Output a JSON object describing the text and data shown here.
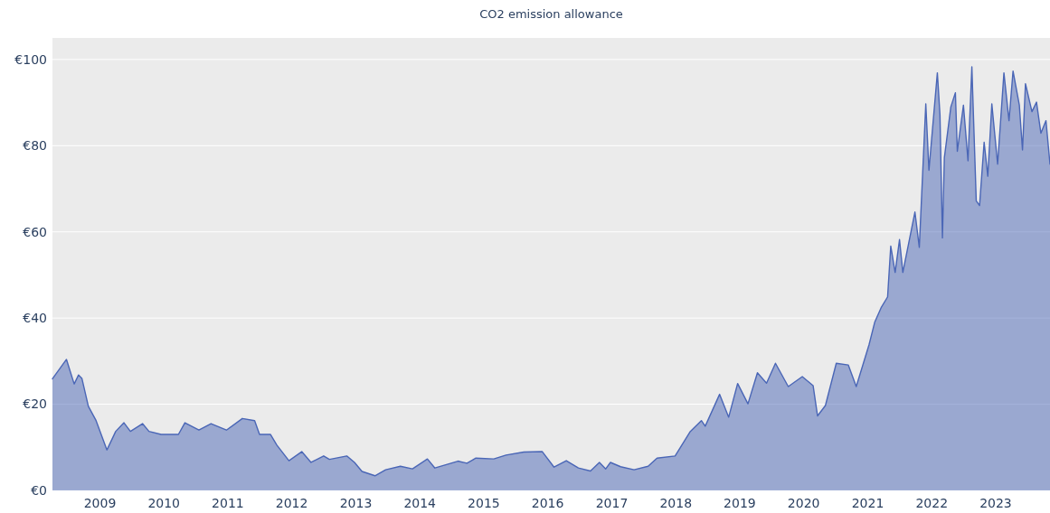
{
  "chart_data": {
    "type": "area",
    "title": "CO2 emission allowance",
    "xlim": [
      "2008-04-05",
      "2023-11-07"
    ],
    "xticks": [
      {
        "value": "2009",
        "label": "2009"
      },
      {
        "value": "2010",
        "label": "2010"
      },
      {
        "value": "2011",
        "label": "2011"
      },
      {
        "value": "2012",
        "label": "2012"
      },
      {
        "value": "2013",
        "label": "2013"
      },
      {
        "value": "2014",
        "label": "2014"
      },
      {
        "value": "2015",
        "label": "2015"
      },
      {
        "value": "2016",
        "label": "2016"
      },
      {
        "value": "2017",
        "label": "2017"
      },
      {
        "value": "2018",
        "label": "2018"
      },
      {
        "value": "2019",
        "label": "2019"
      },
      {
        "value": "2020",
        "label": "2020"
      },
      {
        "value": "2021",
        "label": "2021"
      },
      {
        "value": "2022",
        "label": "2022"
      },
      {
        "value": "2023",
        "label": "2023"
      }
    ],
    "ylim": [
      0,
      105
    ],
    "yticks": [
      {
        "value": 0,
        "label": "€0"
      },
      {
        "value": 20,
        "label": "€20"
      },
      {
        "value": 40,
        "label": "€40"
      },
      {
        "value": 60,
        "label": "€60"
      },
      {
        "value": 80,
        "label": "€80"
      },
      {
        "value": 100,
        "label": "€100"
      }
    ],
    "grid": "y",
    "series": [
      {
        "color": "#4a66b6",
        "x": [
          "2008-04-05",
          "2008-06-24",
          "2008-08-07",
          "2008-09-01",
          "2008-09-20",
          "2008-10-27",
          "2008-12-10",
          "2009-02-10",
          "2009-04-01",
          "2009-05-18",
          "2009-06-24",
          "2009-09-01",
          "2009-10-08",
          "2009-12-16",
          "2010-03-25",
          "2010-05-01",
          "2010-07-20",
          "2010-09-27",
          "2010-12-24",
          "2011-03-25",
          "2011-06-03",
          "2011-07-01",
          "2011-09-01",
          "2011-10-08",
          "2011-12-16",
          "2012-02-27",
          "2012-04-20",
          "2012-07-01",
          "2012-08-03",
          "2012-11-10",
          "2012-12-24",
          "2013-02-05",
          "2013-04-20",
          "2013-06-20",
          "2013-09-12",
          "2013-11-20",
          "2014-02-13",
          "2014-03-28",
          "2014-08-07",
          "2014-09-27",
          "2014-11-17",
          "2015-02-27",
          "2015-05-08",
          "2015-08-18",
          "2015-12-01",
          "2016-02-06",
          "2016-04-16",
          "2016-06-24",
          "2016-09-01",
          "2016-10-22",
          "2016-11-27",
          "2016-12-24",
          "2017-02-20",
          "2017-05-08",
          "2017-07-27",
          "2017-09-16",
          "2017-12-28",
          "2018-03-25",
          "2018-05-27",
          "2018-06-18",
          "2018-09-08",
          "2018-10-30",
          "2018-12-20",
          "2019-02-17",
          "2019-04-12",
          "2019-06-03",
          "2019-07-24",
          "2019-10-05",
          "2019-12-24",
          "2020-02-24",
          "2020-03-20",
          "2020-05-04",
          "2020-07-05",
          "2020-09-12",
          "2020-10-27",
          "2021-01-08",
          "2021-02-10",
          "2021-03-18",
          "2021-04-24",
          "2021-05-12",
          "2021-06-06",
          "2021-07-01",
          "2021-07-20",
          "2021-09-27",
          "2021-10-22",
          "2021-11-28",
          "2021-12-16",
          "2022-02-02",
          "2022-02-17",
          "2022-03-03",
          "2022-03-14",
          "2022-04-20",
          "2022-05-16",
          "2022-05-27",
          "2022-07-01",
          "2022-07-27",
          "2022-08-18",
          "2022-09-12",
          "2022-10-01",
          "2022-10-27",
          "2022-11-17",
          "2022-12-10",
          "2023-01-12",
          "2023-02-17",
          "2023-03-18",
          "2023-04-10",
          "2023-05-16",
          "2023-06-03",
          "2023-06-20",
          "2023-07-27",
          "2023-08-22",
          "2023-09-16",
          "2023-10-15",
          "2023-11-07"
        ],
        "values": [
          25.9,
          30.4,
          24.7,
          26.8,
          26.0,
          19.5,
          16.2,
          9.4,
          13.7,
          15.7,
          13.7,
          15.5,
          13.7,
          13.0,
          13.0,
          15.7,
          14.0,
          15.5,
          14.0,
          16.7,
          16.2,
          13.0,
          13.0,
          10.5,
          6.9,
          9.0,
          6.5,
          8.0,
          7.2,
          8.0,
          6.5,
          4.4,
          3.4,
          4.8,
          5.6,
          5.0,
          7.3,
          5.2,
          6.8,
          6.3,
          7.5,
          7.3,
          8.2,
          8.9,
          9.0,
          5.4,
          6.9,
          5.2,
          4.5,
          6.5,
          5.0,
          6.5,
          5.5,
          4.8,
          5.6,
          7.5,
          8.0,
          13.7,
          16.2,
          14.9,
          22.3,
          17.0,
          24.8,
          20.1,
          27.3,
          24.9,
          29.5,
          24.1,
          26.4,
          24.3,
          17.3,
          19.7,
          29.5,
          29.1,
          24.1,
          33.8,
          39.1,
          42.4,
          44.9,
          56.7,
          50.6,
          58.2,
          50.6,
          64.6,
          56.4,
          89.7,
          74.3,
          96.9,
          87.2,
          58.6,
          77.2,
          89.0,
          92.3,
          78.7,
          89.4,
          76.5,
          98.3,
          67.2,
          66.1,
          80.8,
          72.9,
          89.7,
          75.7,
          96.9,
          85.8,
          97.3,
          89.4,
          79.0,
          94.4,
          87.9,
          90.1,
          82.9,
          85.8,
          75.7
        ]
      }
    ]
  }
}
